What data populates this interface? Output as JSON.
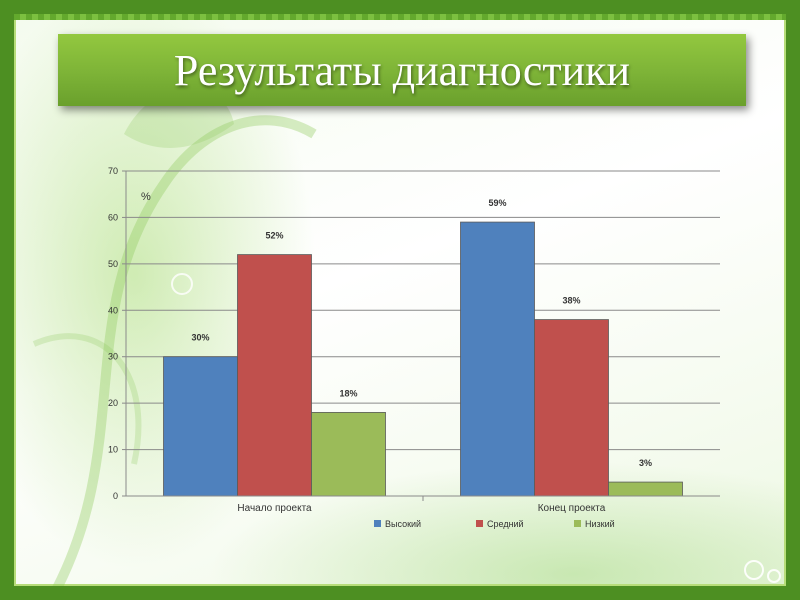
{
  "slide": {
    "title": "Результаты диагностики",
    "colors": {
      "frame": "#4d8f22",
      "title_bg": "#7db337",
      "title_text": "#ffffff"
    }
  },
  "chart_data": {
    "type": "bar",
    "title": "",
    "xlabel": "",
    "ylabel": "%",
    "ylim": [
      0,
      70
    ],
    "yticks": [
      0,
      10,
      20,
      30,
      40,
      50,
      60,
      70
    ],
    "grid": true,
    "legend_position": "bottom",
    "categories": [
      "Начало проекта",
      "Конец проекта"
    ],
    "series": [
      {
        "name": "Высокий",
        "values": [
          30,
          59
        ],
        "labels": [
          "30%",
          "59%"
        ],
        "color": "#4f81bd"
      },
      {
        "name": "Средний",
        "values": [
          52,
          38
        ],
        "labels": [
          "52%",
          "38%"
        ],
        "color": "#c0504d"
      },
      {
        "name": "Низкий",
        "values": [
          18,
          3
        ],
        "labels": [
          "18%",
          "3%"
        ],
        "color": "#9bbb59"
      }
    ]
  }
}
